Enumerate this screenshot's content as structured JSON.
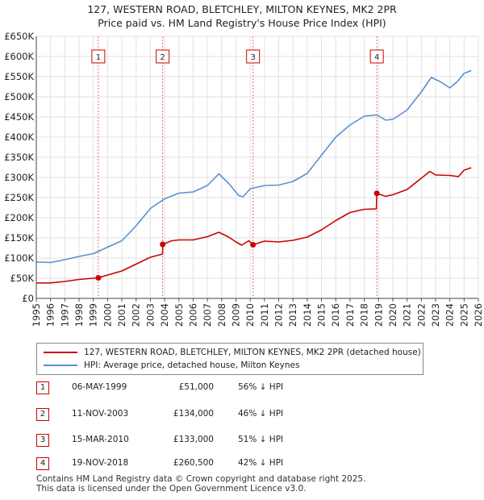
{
  "title_line1": "127, WESTERN ROAD, BLETCHLEY, MILTON KEYNES, MK2 2PR",
  "title_line2": "Price paid vs. HM Land Registry's House Price Index (HPI)",
  "colors": {
    "property": "#cc0000",
    "hpi": "#5b8fd0",
    "grid": "#e2e2e2",
    "marker_border": "#cc0000"
  },
  "chart_data": {
    "type": "line",
    "xlim": [
      1995,
      2026
    ],
    "ylim": [
      0,
      650000
    ],
    "x_ticks": [
      "1995",
      "1996",
      "1997",
      "1998",
      "1999",
      "2000",
      "2001",
      "2002",
      "2003",
      "2004",
      "2005",
      "2006",
      "2007",
      "2008",
      "2009",
      "2010",
      "2011",
      "2012",
      "2013",
      "2014",
      "2015",
      "2016",
      "2017",
      "2018",
      "2019",
      "2020",
      "2021",
      "2022",
      "2023",
      "2024",
      "2025",
      "2026"
    ],
    "y_ticks": [
      {
        "value": 0,
        "label": "£0"
      },
      {
        "value": 50000,
        "label": "£50K"
      },
      {
        "value": 100000,
        "label": "£100K"
      },
      {
        "value": 150000,
        "label": "£150K"
      },
      {
        "value": 200000,
        "label": "£200K"
      },
      {
        "value": 250000,
        "label": "£250K"
      },
      {
        "value": 300000,
        "label": "£300K"
      },
      {
        "value": 350000,
        "label": "£350K"
      },
      {
        "value": 400000,
        "label": "£400K"
      },
      {
        "value": 450000,
        "label": "£450K"
      },
      {
        "value": 500000,
        "label": "£500K"
      },
      {
        "value": 550000,
        "label": "£550K"
      },
      {
        "value": 600000,
        "label": "£600K"
      },
      {
        "value": 650000,
        "label": "£650K"
      }
    ],
    "series": [
      {
        "name": "127, WESTERN ROAD, BLETCHLEY, MILTON KEYNES, MK2 2PR (detached house)",
        "color": "#cc0000",
        "points": [
          [
            1995,
            38000
          ],
          [
            1996,
            38500
          ],
          [
            1997,
            42000
          ],
          [
            1998,
            47000
          ],
          [
            1999.35,
            51000
          ],
          [
            2000,
            58000
          ],
          [
            2001,
            68000
          ],
          [
            2002,
            85000
          ],
          [
            2003,
            102000
          ],
          [
            2003.86,
            110000
          ],
          [
            2003.87,
            134000
          ],
          [
            2004.5,
            143000
          ],
          [
            2005,
            145000
          ],
          [
            2006,
            145000
          ],
          [
            2007,
            153000
          ],
          [
            2007.8,
            164000
          ],
          [
            2008.5,
            152000
          ],
          [
            2009,
            140000
          ],
          [
            2009.4,
            132000
          ],
          [
            2009.9,
            143000
          ],
          [
            2010.2,
            133000
          ],
          [
            2011,
            142000
          ],
          [
            2012,
            140000
          ],
          [
            2013,
            144000
          ],
          [
            2014,
            152000
          ],
          [
            2015,
            170000
          ],
          [
            2016,
            193000
          ],
          [
            2017,
            213000
          ],
          [
            2018,
            221000
          ],
          [
            2018.85,
            222000
          ],
          [
            2018.88,
            260500
          ],
          [
            2019.5,
            253000
          ],
          [
            2020,
            257000
          ],
          [
            2021,
            270000
          ],
          [
            2022,
            298000
          ],
          [
            2022.6,
            315000
          ],
          [
            2023,
            306000
          ],
          [
            2024,
            305000
          ],
          [
            2024.6,
            302000
          ],
          [
            2025,
            318000
          ],
          [
            2025.5,
            324000
          ]
        ]
      },
      {
        "name": "HPI: Average price, detached house, Milton Keynes",
        "color": "#5b8fd0",
        "points": [
          [
            1995,
            90000
          ],
          [
            1996,
            89000
          ],
          [
            1997,
            96000
          ],
          [
            1998,
            104000
          ],
          [
            1999,
            111000
          ],
          [
            2000,
            127000
          ],
          [
            2001,
            143000
          ],
          [
            2002,
            180000
          ],
          [
            2003,
            223000
          ],
          [
            2004,
            247000
          ],
          [
            2005,
            261000
          ],
          [
            2006,
            264000
          ],
          [
            2007,
            280000
          ],
          [
            2007.8,
            309000
          ],
          [
            2008.5,
            285000
          ],
          [
            2009.2,
            255000
          ],
          [
            2009.5,
            252000
          ],
          [
            2010,
            272000
          ],
          [
            2011,
            280000
          ],
          [
            2012,
            281000
          ],
          [
            2013,
            290000
          ],
          [
            2014,
            310000
          ],
          [
            2015,
            355000
          ],
          [
            2016,
            400000
          ],
          [
            2017,
            430000
          ],
          [
            2018,
            452000
          ],
          [
            2018.9,
            455000
          ],
          [
            2019.5,
            442000
          ],
          [
            2020,
            444000
          ],
          [
            2021,
            467000
          ],
          [
            2022,
            512000
          ],
          [
            2022.7,
            548000
          ],
          [
            2023.3,
            538000
          ],
          [
            2024,
            522000
          ],
          [
            2024.5,
            537000
          ],
          [
            2025,
            558000
          ],
          [
            2025.5,
            565000
          ]
        ]
      }
    ],
    "sales": [
      {
        "n": "1",
        "x": 1999.35,
        "y": 51000,
        "date": "06-MAY-1999",
        "price": "£51,000",
        "hpi": "56% ↓ HPI"
      },
      {
        "n": "2",
        "x": 2003.86,
        "y": 134000,
        "date": "11-NOV-2003",
        "price": "£134,000",
        "hpi": "46% ↓ HPI"
      },
      {
        "n": "3",
        "x": 2010.2,
        "y": 133000,
        "date": "15-MAR-2010",
        "price": "£133,000",
        "hpi": "51% ↓ HPI"
      },
      {
        "n": "4",
        "x": 2018.88,
        "y": 260500,
        "date": "19-NOV-2018",
        "price": "£260,500",
        "hpi": "42% ↓ HPI"
      }
    ]
  },
  "legend": {
    "property_label": "127, WESTERN ROAD, BLETCHLEY, MILTON KEYNES, MK2 2PR (detached house)",
    "hpi_label": "HPI: Average price, detached house, Milton Keynes"
  },
  "footer_line1": "Contains HM Land Registry data © Crown copyright and database right 2025.",
  "footer_line2": "This data is licensed under the Open Government Licence v3.0."
}
